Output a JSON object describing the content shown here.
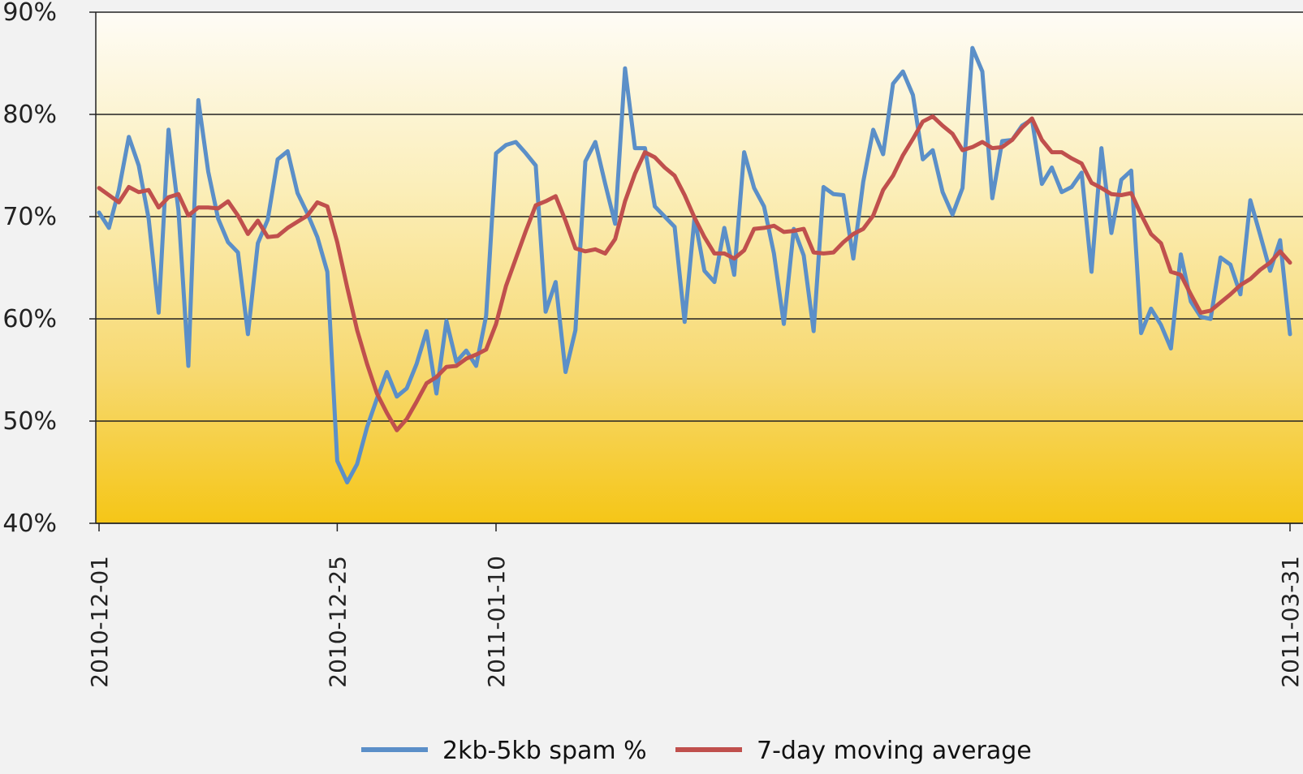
{
  "chart_data": {
    "type": "line",
    "title": "",
    "xlabel": "",
    "ylabel": "",
    "ylim": [
      40,
      90
    ],
    "y_ticks": [
      "40%",
      "50%",
      "60%",
      "70%",
      "80%",
      "90%"
    ],
    "x_range": [
      "2010-12-01",
      "2011-03-31"
    ],
    "x_ticks": [
      {
        "date": "2010-12-01",
        "label": "2010-12-01"
      },
      {
        "date": "2010-12-25",
        "label": "2010-12-25"
      },
      {
        "date": "2011-01-10",
        "label": "2011-01-10"
      },
      {
        "date": "2011-03-31",
        "label": "2011-03-31"
      }
    ],
    "grid": true,
    "legend_position": "bottom",
    "series": [
      {
        "name": "2kb-5kb spam %",
        "color": "#5b8fc8",
        "x": [
          "2010-12-01",
          "2010-12-02",
          "2010-12-03",
          "2010-12-04",
          "2010-12-05",
          "2010-12-06",
          "2010-12-07",
          "2010-12-08",
          "2010-12-09",
          "2010-12-10",
          "2010-12-11",
          "2010-12-12",
          "2010-12-13",
          "2010-12-14",
          "2010-12-15",
          "2010-12-16",
          "2010-12-17",
          "2010-12-18",
          "2010-12-19",
          "2010-12-20",
          "2010-12-21",
          "2010-12-22",
          "2010-12-23",
          "2010-12-24",
          "2010-12-25",
          "2010-12-26",
          "2010-12-27",
          "2010-12-28",
          "2010-12-29",
          "2010-12-30",
          "2010-12-31",
          "2011-01-01",
          "2011-01-02",
          "2011-01-03",
          "2011-01-04",
          "2011-01-05",
          "2011-01-06",
          "2011-01-07",
          "2011-01-08",
          "2011-01-09",
          "2011-01-10",
          "2011-01-11",
          "2011-01-12",
          "2011-01-13",
          "2011-01-14",
          "2011-01-15",
          "2011-01-16",
          "2011-01-17",
          "2011-01-18",
          "2011-01-19",
          "2011-01-20",
          "2011-01-21",
          "2011-01-22",
          "2011-01-23",
          "2011-01-24",
          "2011-01-25",
          "2011-01-26",
          "2011-01-27",
          "2011-01-28",
          "2011-01-29",
          "2011-01-30",
          "2011-01-31",
          "2011-02-01",
          "2011-02-02",
          "2011-02-03",
          "2011-02-04",
          "2011-02-05",
          "2011-02-06",
          "2011-02-07",
          "2011-02-08",
          "2011-02-09",
          "2011-02-10",
          "2011-02-11",
          "2011-02-12",
          "2011-02-13",
          "2011-02-14",
          "2011-02-15",
          "2011-02-16",
          "2011-02-17",
          "2011-02-18",
          "2011-02-19",
          "2011-02-20",
          "2011-02-21",
          "2011-02-22",
          "2011-02-23",
          "2011-02-24",
          "2011-02-25",
          "2011-02-26",
          "2011-02-27",
          "2011-02-28",
          "2011-03-01",
          "2011-03-02",
          "2011-03-03",
          "2011-03-04",
          "2011-03-05",
          "2011-03-06",
          "2011-03-07",
          "2011-03-08",
          "2011-03-09",
          "2011-03-10",
          "2011-03-11",
          "2011-03-12",
          "2011-03-13",
          "2011-03-14",
          "2011-03-15",
          "2011-03-16",
          "2011-03-17",
          "2011-03-18",
          "2011-03-19",
          "2011-03-20",
          "2011-03-21",
          "2011-03-22",
          "2011-03-23",
          "2011-03-24",
          "2011-03-25",
          "2011-03-26",
          "2011-03-27",
          "2011-03-28",
          "2011-03-29",
          "2011-03-30",
          "2011-03-31"
        ],
        "values": [
          70.4,
          68.9,
          72.6,
          77.8,
          75.0,
          69.8,
          60.6,
          78.5,
          70.6,
          55.4,
          81.4,
          74.4,
          69.8,
          67.5,
          66.5,
          58.5,
          67.4,
          69.7,
          75.6,
          76.4,
          72.3,
          70.3,
          68.0,
          64.6,
          46.1,
          44.0,
          45.8,
          49.4,
          52.2,
          54.8,
          52.4,
          53.2,
          55.6,
          58.8,
          52.7,
          59.8,
          55.8,
          56.9,
          55.4,
          60.3,
          76.2,
          77.0,
          77.3,
          76.2,
          75.0,
          60.7,
          63.6,
          54.8,
          58.9,
          75.4,
          77.3,
          73.2,
          69.3,
          84.5,
          76.7,
          76.7,
          71.0,
          70.0,
          69.0,
          59.7,
          69.9,
          64.7,
          63.6,
          68.9,
          64.3,
          76.3,
          72.8,
          71.0,
          66.4,
          59.5,
          68.8,
          66.2,
          58.8,
          72.9,
          72.2,
          72.1,
          65.9,
          73.4,
          78.5,
          76.1,
          83.0,
          84.2,
          81.9,
          75.6,
          76.5,
          72.4,
          70.2,
          72.8,
          86.5,
          84.2,
          71.8,
          77.4,
          77.5,
          78.9,
          79.5,
          73.2,
          74.8,
          72.4,
          72.9,
          74.3,
          64.6,
          76.7,
          68.4,
          73.6,
          74.5,
          58.6,
          61.0,
          59.4,
          57.1,
          66.3,
          61.7,
          60.2,
          60.0,
          66.0,
          65.3,
          62.4,
          71.6,
          68.2,
          64.7,
          67.7,
          58.5
        ]
      },
      {
        "name": "7-day moving average",
        "color": "#c0504d",
        "x": [
          "2010-12-01",
          "2010-12-02",
          "2010-12-03",
          "2010-12-04",
          "2010-12-05",
          "2010-12-06",
          "2010-12-07",
          "2010-12-08",
          "2010-12-09",
          "2010-12-10",
          "2010-12-11",
          "2010-12-12",
          "2010-12-13",
          "2010-12-14",
          "2010-12-15",
          "2010-12-16",
          "2010-12-17",
          "2010-12-18",
          "2010-12-19",
          "2010-12-20",
          "2010-12-21",
          "2010-12-22",
          "2010-12-23",
          "2010-12-24",
          "2010-12-25",
          "2010-12-26",
          "2010-12-27",
          "2010-12-28",
          "2010-12-29",
          "2010-12-30",
          "2010-12-31",
          "2011-01-01",
          "2011-01-02",
          "2011-01-03",
          "2011-01-04",
          "2011-01-05",
          "2011-01-06",
          "2011-01-07",
          "2011-01-08",
          "2011-01-09",
          "2011-01-10",
          "2011-01-11",
          "2011-01-12",
          "2011-01-13",
          "2011-01-14",
          "2011-01-15",
          "2011-01-16",
          "2011-01-17",
          "2011-01-18",
          "2011-01-19",
          "2011-01-20",
          "2011-01-21",
          "2011-01-22",
          "2011-01-23",
          "2011-01-24",
          "2011-01-25",
          "2011-01-26",
          "2011-01-27",
          "2011-01-28",
          "2011-01-29",
          "2011-01-30",
          "2011-01-31",
          "2011-02-01",
          "2011-02-02",
          "2011-02-03",
          "2011-02-04",
          "2011-02-05",
          "2011-02-06",
          "2011-02-07",
          "2011-02-08",
          "2011-02-09",
          "2011-02-10",
          "2011-02-11",
          "2011-02-12",
          "2011-02-13",
          "2011-02-14",
          "2011-02-15",
          "2011-02-16",
          "2011-02-17",
          "2011-02-18",
          "2011-02-19",
          "2011-02-20",
          "2011-02-21",
          "2011-02-22",
          "2011-02-23",
          "2011-02-24",
          "2011-02-25",
          "2011-02-26",
          "2011-02-27",
          "2011-02-28",
          "2011-03-01",
          "2011-03-02",
          "2011-03-03",
          "2011-03-04",
          "2011-03-05",
          "2011-03-06",
          "2011-03-07",
          "2011-03-08",
          "2011-03-09",
          "2011-03-10",
          "2011-03-11",
          "2011-03-12",
          "2011-03-13",
          "2011-03-14",
          "2011-03-15",
          "2011-03-16",
          "2011-03-17",
          "2011-03-18",
          "2011-03-19",
          "2011-03-20",
          "2011-03-21",
          "2011-03-22",
          "2011-03-23",
          "2011-03-24",
          "2011-03-25",
          "2011-03-26",
          "2011-03-27",
          "2011-03-28",
          "2011-03-29",
          "2011-03-30",
          "2011-03-31"
        ],
        "values": [
          72.8,
          72.1,
          71.4,
          72.9,
          72.4,
          72.6,
          70.9,
          71.9,
          72.2,
          70.1,
          70.9,
          70.9,
          70.8,
          71.5,
          70.1,
          68.3,
          69.6,
          68.0,
          68.1,
          68.9,
          69.5,
          70.1,
          71.4,
          71.0,
          67.5,
          63.1,
          58.9,
          55.6,
          52.7,
          50.8,
          49.1,
          50.2,
          51.9,
          53.7,
          54.3,
          55.3,
          55.4,
          56.1,
          56.5,
          57.0,
          59.5,
          63.2,
          65.9,
          68.6,
          71.1,
          71.5,
          72.0,
          69.6,
          66.9,
          66.6,
          66.8,
          66.4,
          67.8,
          71.5,
          74.2,
          76.3,
          75.8,
          74.8,
          74.0,
          72.1,
          69.9,
          68.0,
          66.4,
          66.4,
          65.9,
          66.7,
          68.8,
          68.9,
          69.1,
          68.5,
          68.6,
          68.8,
          66.5,
          66.4,
          66.5,
          67.5,
          68.3,
          68.8,
          70.1,
          72.6,
          74.0,
          76.0,
          77.6,
          79.3,
          79.8,
          78.9,
          78.1,
          76.5,
          76.8,
          77.3,
          76.7,
          76.8,
          77.5,
          78.7,
          79.6,
          77.5,
          76.3,
          76.3,
          75.7,
          75.2,
          73.3,
          72.8,
          72.2,
          72.1,
          72.3,
          70.2,
          68.3,
          67.4,
          64.6,
          64.3,
          62.4,
          60.6,
          60.8,
          61.6,
          62.4,
          63.3,
          63.9,
          64.8,
          65.5,
          66.6,
          65.5
        ]
      }
    ]
  }
}
